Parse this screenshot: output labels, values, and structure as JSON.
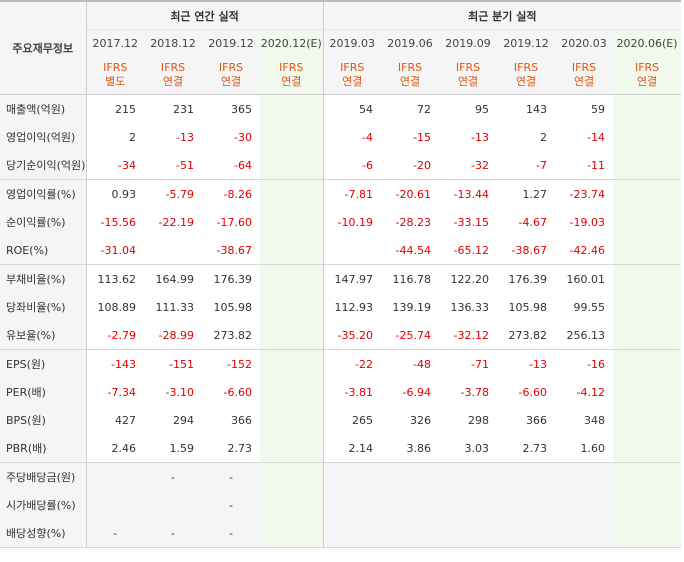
{
  "header": {
    "row_label": "주요재무정보",
    "annual_group": "최근 연간 실적",
    "quarterly_group": "최근 분기 실적"
  },
  "periods": [
    {
      "label": "2017.12",
      "std_line1": "IFRS",
      "std_line2": "별도"
    },
    {
      "label": "2018.12",
      "std_line1": "IFRS",
      "std_line2": "연결"
    },
    {
      "label": "2019.12",
      "std_line1": "IFRS",
      "std_line2": "연결"
    },
    {
      "label": "2020.12(E)",
      "std_line1": "IFRS",
      "std_line2": "연결"
    },
    {
      "label": "2019.03",
      "std_line1": "IFRS",
      "std_line2": "연결"
    },
    {
      "label": "2019.06",
      "std_line1": "IFRS",
      "std_line2": "연결"
    },
    {
      "label": "2019.09",
      "std_line1": "IFRS",
      "std_line2": "연결"
    },
    {
      "label": "2019.12",
      "std_line1": "IFRS",
      "std_line2": "연결"
    },
    {
      "label": "2020.03",
      "std_line1": "IFRS",
      "std_line2": "연결"
    },
    {
      "label": "2020.06(E)",
      "std_line1": "IFRS",
      "std_line2": "연결"
    }
  ],
  "rows": [
    {
      "label": "매출액(억원)",
      "values": [
        "215",
        "231",
        "365",
        "",
        "54",
        "72",
        "95",
        "143",
        "59",
        ""
      ]
    },
    {
      "label": "영업이익(억원)",
      "values": [
        "2",
        "-13",
        "-30",
        "",
        "-4",
        "-15",
        "-13",
        "2",
        "-14",
        ""
      ]
    },
    {
      "label": "당기순이익(억원)",
      "values": [
        "-34",
        "-51",
        "-64",
        "",
        "-6",
        "-20",
        "-32",
        "-7",
        "-11",
        ""
      ]
    },
    {
      "label": "영업이익률(%)",
      "values": [
        "0.93",
        "-5.79",
        "-8.26",
        "",
        "-7.81",
        "-20.61",
        "-13.44",
        "1.27",
        "-23.74",
        ""
      ]
    },
    {
      "label": "순이익률(%)",
      "values": [
        "-15.56",
        "-22.19",
        "-17.60",
        "",
        "-10.19",
        "-28.23",
        "-33.15",
        "-4.67",
        "-19.03",
        ""
      ]
    },
    {
      "label": "ROE(%)",
      "values": [
        "-31.04",
        "",
        "-38.67",
        "",
        "",
        "-44.54",
        "-65.12",
        "-38.67",
        "-42.46",
        ""
      ]
    },
    {
      "label": "부채비율(%)",
      "values": [
        "113.62",
        "164.99",
        "176.39",
        "",
        "147.97",
        "116.78",
        "122.20",
        "176.39",
        "160.01",
        ""
      ]
    },
    {
      "label": "당좌비율(%)",
      "values": [
        "108.89",
        "111.33",
        "105.98",
        "",
        "112.93",
        "139.19",
        "136.33",
        "105.98",
        "99.55",
        ""
      ]
    },
    {
      "label": "유보율(%)",
      "values": [
        "-2.79",
        "-28.99",
        "273.82",
        "",
        "-35.20",
        "-25.74",
        "-32.12",
        "273.82",
        "256.13",
        ""
      ]
    },
    {
      "label": "EPS(원)",
      "values": [
        "-143",
        "-151",
        "-152",
        "",
        "-22",
        "-48",
        "-71",
        "-13",
        "-16",
        ""
      ]
    },
    {
      "label": "PER(배)",
      "values": [
        "-7.34",
        "-3.10",
        "-6.60",
        "",
        "-3.81",
        "-6.94",
        "-3.78",
        "-6.60",
        "-4.12",
        ""
      ]
    },
    {
      "label": "BPS(원)",
      "values": [
        "427",
        "294",
        "366",
        "",
        "265",
        "326",
        "298",
        "366",
        "348",
        ""
      ]
    },
    {
      "label": "PBR(배)",
      "values": [
        "2.46",
        "1.59",
        "2.73",
        "",
        "2.14",
        "3.86",
        "3.03",
        "2.73",
        "1.60",
        ""
      ]
    },
    {
      "label": "주당배당금(원)",
      "values": [
        "",
        "-",
        "-",
        "",
        "",
        "",
        "",
        "",
        "",
        ""
      ]
    },
    {
      "label": "시가배당률(%)",
      "values": [
        "",
        "",
        "-",
        "",
        "",
        "",
        "",
        "",
        "",
        ""
      ]
    },
    {
      "label": "배당성향(%)",
      "values": [
        "-",
        "-",
        "-",
        "",
        "",
        "",
        "",
        "",
        "",
        ""
      ]
    }
  ]
}
